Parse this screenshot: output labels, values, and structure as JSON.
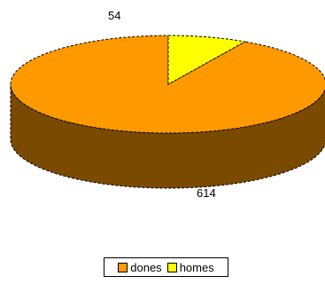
{
  "chart_data": {
    "type": "pie",
    "title": "",
    "style": "3d",
    "slices": [
      {
        "label": "dones",
        "value": 614,
        "color": "#ff9900",
        "side_color": "#7a4a00"
      },
      {
        "label": "homes",
        "value": 54,
        "color": "#ffff00",
        "side_color": "#7f7f00"
      }
    ],
    "data_labels": [
      "614",
      "54"
    ],
    "legend": {
      "position": "bottom",
      "entries": [
        "dones",
        "homes"
      ]
    }
  }
}
